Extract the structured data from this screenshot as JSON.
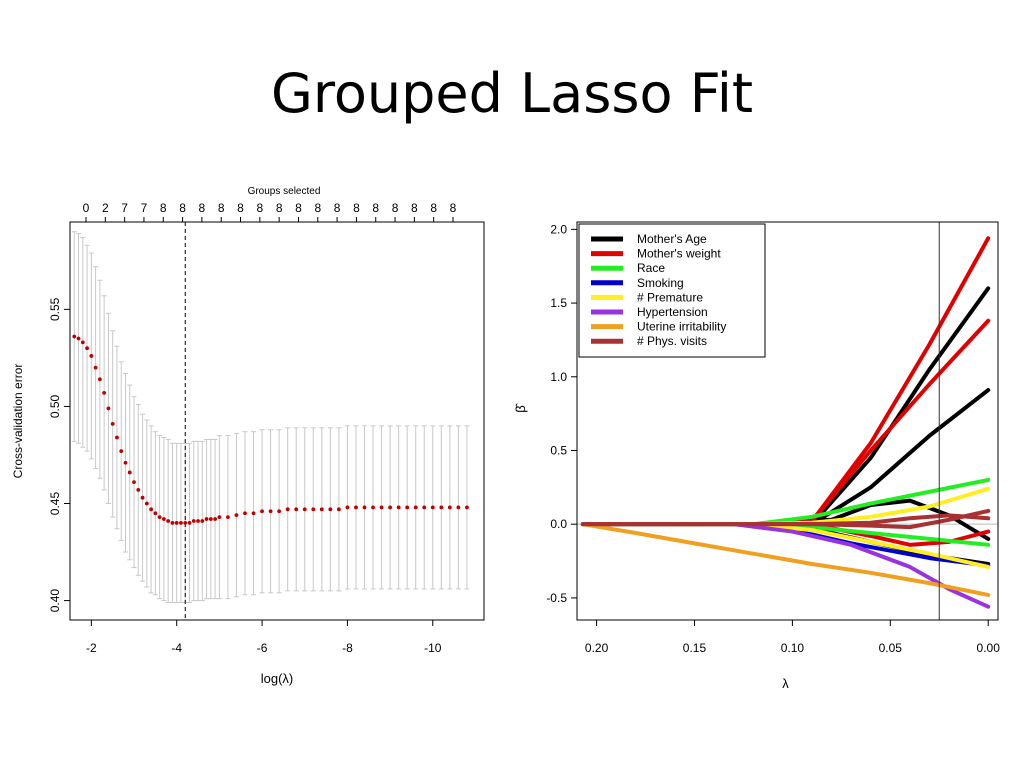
{
  "slide": {
    "title": "Grouped Lasso Fit"
  },
  "chart_data": [
    {
      "type": "scatter",
      "top_label": "Groups selected",
      "groups_selected": [
        "0",
        "2",
        "7",
        "7",
        "8",
        "8",
        "8",
        "8",
        "8",
        "8",
        "8",
        "8",
        "8",
        "8",
        "8",
        "8",
        "8",
        "8",
        "8",
        "8"
      ],
      "xlabel": "log(λ)",
      "ylabel": "Cross-validation error",
      "xlim": [
        -1.5,
        -11.2
      ],
      "ylim": [
        0.39,
        0.595
      ],
      "x_ticks": [
        -2,
        -4,
        -6,
        -8,
        -10
      ],
      "y_ticks": [
        "0.40",
        "0.45",
        "0.50",
        "0.55"
      ],
      "vline_x": -4.2,
      "point_color": "#c00000",
      "errorbar_color": "#c8c8c8",
      "series": [
        {
          "x": [
            -1.6,
            -1.7,
            -1.8,
            -1.9,
            -2.0,
            -2.1,
            -2.2,
            -2.3,
            -2.4,
            -2.5,
            -2.6,
            -2.7,
            -2.8,
            -2.9,
            -3.0,
            -3.1,
            -3.2,
            -3.3,
            -3.4,
            -3.5,
            -3.6,
            -3.7,
            -3.8,
            -3.9,
            -4.0,
            -4.1,
            -4.2,
            -4.3,
            -4.4,
            -4.5,
            -4.6,
            -4.7,
            -4.8,
            -4.9,
            -5.0,
            -5.2,
            -5.4,
            -5.6,
            -5.8,
            -6.0,
            -6.2,
            -6.4,
            -6.6,
            -6.8,
            -7.0,
            -7.2,
            -7.4,
            -7.6,
            -7.8,
            -8.0,
            -8.2,
            -8.4,
            -8.6,
            -8.8,
            -9.0,
            -9.2,
            -9.4,
            -9.6,
            -9.8,
            -10.0,
            -10.2,
            -10.4,
            -10.6,
            -10.8
          ],
          "y": [
            0.536,
            0.535,
            0.533,
            0.53,
            0.526,
            0.52,
            0.514,
            0.507,
            0.499,
            0.491,
            0.484,
            0.477,
            0.471,
            0.466,
            0.461,
            0.457,
            0.453,
            0.45,
            0.447,
            0.445,
            0.443,
            0.442,
            0.441,
            0.44,
            0.44,
            0.44,
            0.44,
            0.44,
            0.441,
            0.441,
            0.441,
            0.442,
            0.442,
            0.442,
            0.443,
            0.443,
            0.444,
            0.445,
            0.445,
            0.446,
            0.446,
            0.446,
            0.447,
            0.447,
            0.447,
            0.447,
            0.447,
            0.447,
            0.447,
            0.448,
            0.448,
            0.448,
            0.448,
            0.448,
            0.448,
            0.448,
            0.448,
            0.448,
            0.448,
            0.448,
            0.448,
            0.448,
            0.448,
            0.448
          ],
          "err": [
            0.054,
            0.054,
            0.054,
            0.053,
            0.053,
            0.052,
            0.051,
            0.05,
            0.049,
            0.048,
            0.047,
            0.046,
            0.046,
            0.045,
            0.044,
            0.044,
            0.043,
            0.043,
            0.043,
            0.042,
            0.042,
            0.042,
            0.042,
            0.041,
            0.041,
            0.041,
            0.041,
            0.041,
            0.041,
            0.041,
            0.041,
            0.041,
            0.041,
            0.041,
            0.042,
            0.042,
            0.042,
            0.042,
            0.042,
            0.042,
            0.042,
            0.042,
            0.042,
            0.042,
            0.042,
            0.042,
            0.042,
            0.042,
            0.042,
            0.042,
            0.042,
            0.042,
            0.042,
            0.042,
            0.042,
            0.042,
            0.042,
            0.042,
            0.042,
            0.042,
            0.042,
            0.042,
            0.042,
            0.042
          ]
        }
      ]
    },
    {
      "type": "line",
      "xlabel": "λ",
      "ylabel": "β̂",
      "xlim": [
        0.21,
        -0.005
      ],
      "ylim": [
        -0.65,
        2.05
      ],
      "x_ticks": [
        "0.20",
        "0.15",
        "0.10",
        "0.05",
        "0.00"
      ],
      "y_ticks": [
        "-0.5",
        "0.0",
        "0.5",
        "1.0",
        "1.5",
        "2.0"
      ],
      "vline_x": 0.025,
      "hline_y": 0,
      "legend": "top-left",
      "series": [
        {
          "name": "Mother's Age",
          "color": "#000000",
          "lines": [
            {
              "x": [
                0.207,
                0.12,
                0.09,
                0.06,
                0.03,
                0.0
              ],
              "y": [
                0,
                0,
                0,
                0.45,
                1.05,
                1.6
              ]
            },
            {
              "x": [
                0.207,
                0.12,
                0.09,
                0.06,
                0.03,
                0.0
              ],
              "y": [
                0,
                0,
                0,
                0.25,
                0.6,
                0.91
              ]
            },
            {
              "x": [
                0.207,
                0.12,
                0.08,
                0.06,
                0.04,
                0.02,
                0.0
              ],
              "y": [
                0,
                0,
                0.03,
                0.13,
                0.16,
                0.06,
                -0.1
              ]
            },
            {
              "x": [
                0.207,
                0.12,
                0.09,
                0.06,
                0.03,
                0.0
              ],
              "y": [
                0,
                0,
                -0.03,
                -0.12,
                -0.21,
                -0.27
              ]
            }
          ]
        },
        {
          "name": "Mother's weight",
          "color": "#e00000",
          "lines": [
            {
              "x": [
                0.207,
                0.12,
                0.09,
                0.06,
                0.03,
                0.0
              ],
              "y": [
                0,
                0,
                0.02,
                0.55,
                1.22,
                1.94
              ]
            },
            {
              "x": [
                0.207,
                0.12,
                0.09,
                0.06,
                0.03,
                0.0
              ],
              "y": [
                0,
                0,
                0.02,
                0.5,
                0.95,
                1.38
              ]
            },
            {
              "x": [
                0.207,
                0.12,
                0.09,
                0.06,
                0.04,
                0.02,
                0.0
              ],
              "y": [
                0,
                0,
                0,
                -0.08,
                -0.14,
                -0.12,
                -0.05
              ]
            }
          ]
        },
        {
          "name": "Race",
          "color": "#22ee22",
          "lines": [
            {
              "x": [
                0.207,
                0.12,
                0.09,
                0.06,
                0.03,
                0.0
              ],
              "y": [
                0,
                0,
                0.05,
                0.14,
                0.22,
                0.3
              ]
            },
            {
              "x": [
                0.207,
                0.12,
                0.09,
                0.06,
                0.03,
                0.0
              ],
              "y": [
                0,
                0,
                -0.02,
                -0.06,
                -0.1,
                -0.14
              ]
            }
          ]
        },
        {
          "name": "Smoking",
          "color": "#0000cc",
          "lines": [
            {
              "x": [
                0.207,
                0.13,
                0.11,
                0.09,
                0.07,
                0.05,
                0.03,
                0.0
              ],
              "y": [
                0,
                0,
                -0.02,
                -0.07,
                -0.13,
                -0.18,
                -0.23,
                -0.28
              ]
            }
          ]
        },
        {
          "name": "# Premature",
          "color": "#ffee22",
          "lines": [
            {
              "x": [
                0.207,
                0.12,
                0.09,
                0.06,
                0.03,
                0.0
              ],
              "y": [
                0,
                0,
                -0.04,
                -0.12,
                -0.2,
                -0.29
              ]
            },
            {
              "x": [
                0.207,
                0.12,
                0.09,
                0.06,
                0.03,
                0.0
              ],
              "y": [
                0,
                0,
                0.01,
                0.05,
                0.12,
                0.24
              ]
            }
          ]
        },
        {
          "name": "Hypertension",
          "color": "#9933dd",
          "lines": [
            {
              "x": [
                0.207,
                0.13,
                0.1,
                0.07,
                0.04,
                0.02,
                0.0
              ],
              "y": [
                0,
                0,
                -0.05,
                -0.14,
                -0.29,
                -0.44,
                -0.56
              ]
            }
          ]
        },
        {
          "name": "Uterine irritability",
          "color": "#f0a020",
          "lines": [
            {
              "x": [
                0.207,
                0.18,
                0.15,
                0.12,
                0.09,
                0.06,
                0.03,
                0.0
              ],
              "y": [
                0,
                -0.06,
                -0.13,
                -0.2,
                -0.27,
                -0.33,
                -0.4,
                -0.48
              ]
            }
          ]
        },
        {
          "name": "# Phys. visits",
          "color": "#a83232",
          "lines": [
            {
              "x": [
                0.207,
                0.12,
                0.09,
                0.06,
                0.04,
                0.02,
                0.0
              ],
              "y": [
                0,
                0,
                0,
                -0.01,
                -0.02,
                0.03,
                0.09
              ]
            },
            {
              "x": [
                0.207,
                0.12,
                0.09,
                0.06,
                0.04,
                0.02,
                0.0
              ],
              "y": [
                0,
                0,
                0,
                0.01,
                0.04,
                0.06,
                0.04
              ]
            }
          ]
        }
      ]
    }
  ]
}
